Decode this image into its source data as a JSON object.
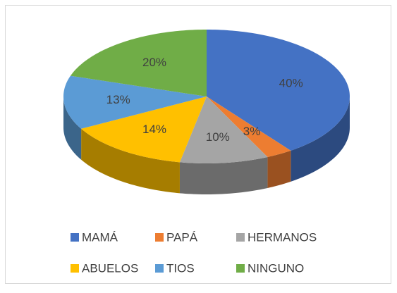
{
  "chart_data": {
    "type": "pie",
    "categories": [
      "MAMÁ",
      "PAPÁ",
      "HERMANOS",
      "ABUELOS",
      "TIOS",
      "NINGUNO"
    ],
    "values": [
      40,
      3,
      10,
      14,
      13,
      20
    ],
    "value_labels": [
      "40%",
      "3%",
      "10%",
      "14%",
      "13%",
      "20%"
    ],
    "colors": [
      "#4472c4",
      "#ed7d31",
      "#a5a5a5",
      "#ffc000",
      "#5b9bd5",
      "#70ad47"
    ],
    "legend": "bottom"
  }
}
